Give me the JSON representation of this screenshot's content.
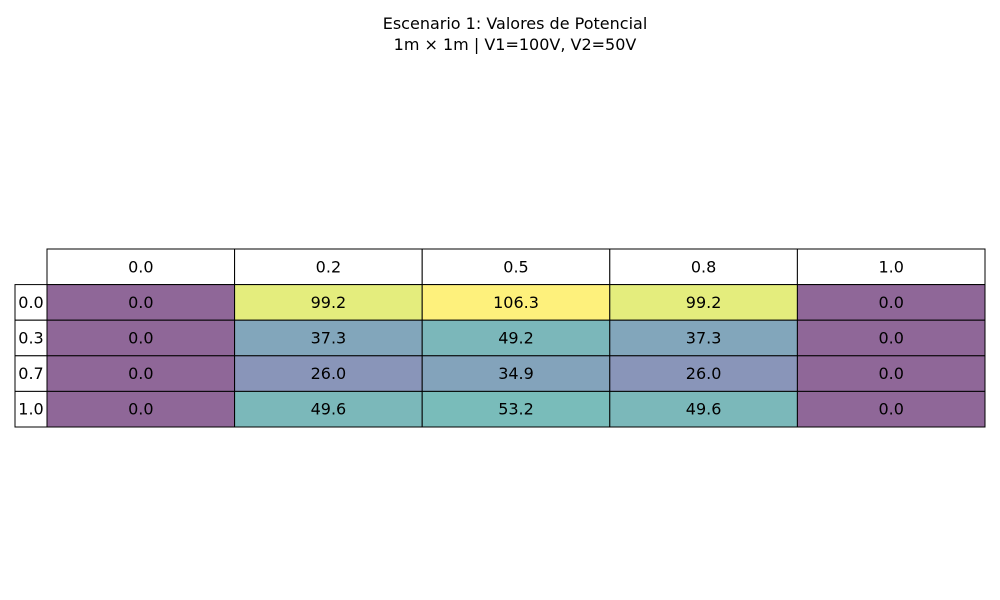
{
  "chart_data": {
    "type": "table",
    "title": "Escenario 1: Valores de Potencial",
    "subtitle": "1m × 1m | V1=100V, V2=50V",
    "col_labels": [
      "0.0",
      "0.2",
      "0.5",
      "0.8",
      "1.0"
    ],
    "row_labels": [
      "0.0",
      "0.3",
      "0.7",
      "1.0"
    ],
    "cells": [
      [
        "0.0",
        "99.2",
        "106.3",
        "99.2",
        "0.0"
      ],
      [
        "0.0",
        "37.3",
        "49.2",
        "37.3",
        "0.0"
      ],
      [
        "0.0",
        "26.0",
        "34.9",
        "26.0",
        "0.0"
      ],
      [
        "0.0",
        "49.6",
        "53.2",
        "49.6",
        "0.0"
      ]
    ],
    "values": [
      [
        0.0,
        99.2,
        106.3,
        99.2,
        0.0
      ],
      [
        0.0,
        37.3,
        49.2,
        37.3,
        0.0
      ],
      [
        0.0,
        26.0,
        34.9,
        26.0,
        0.0
      ],
      [
        0.0,
        49.6,
        53.2,
        49.6,
        0.0
      ]
    ],
    "colormap": "viridis",
    "cell_alpha": 0.6,
    "header_color": "#ffffff",
    "grid_color": "#000000"
  }
}
